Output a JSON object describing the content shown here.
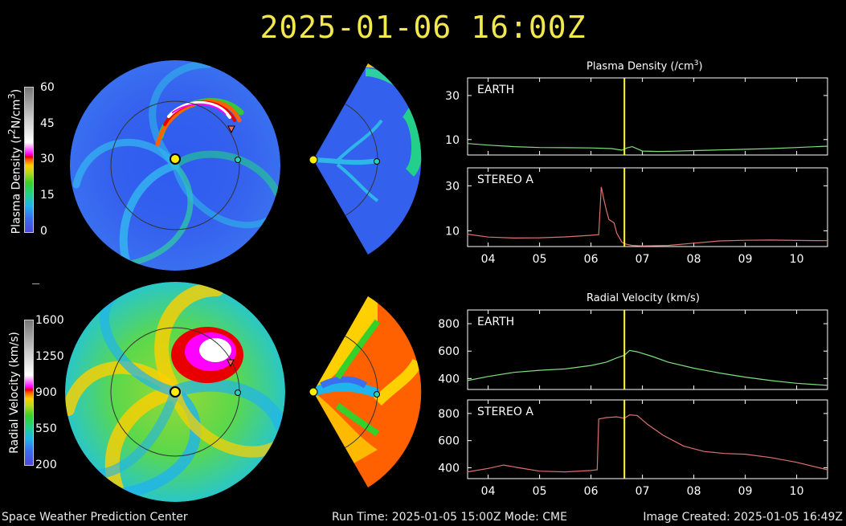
{
  "title": "2025-01-06 16:00Z",
  "footer": {
    "left": "Space Weather Prediction Center",
    "middle": "Run Time: 2025-01-05 15:00Z  Mode: CME",
    "right": "Image Created: 2025-01-05 16:49Z"
  },
  "colorbars": {
    "density": {
      "label_pre": "Plasma Density (r",
      "label_sup1": "2",
      "label_mid": "N/cm",
      "label_sup2": "3",
      "label_post": ")",
      "ticks": [
        "60",
        "45",
        "30",
        "15",
        "0"
      ]
    },
    "velocity": {
      "label": "Radial Velocity (km/s)",
      "ticks": [
        "1600",
        "1250",
        "900",
        "550",
        "200"
      ]
    }
  },
  "colors": {
    "earth_line": "#7ee07e",
    "stereo_line": "#e07070",
    "current_time_marker": "#ffff33",
    "title": "#f2e84b"
  },
  "chart_data": [
    {
      "type": "line",
      "panel_title_pre": "Plasma Density (/cm",
      "panel_title_sup": "3",
      "panel_title_post": ")",
      "label": "EARTH",
      "x_ticks": [],
      "y_ticks": [
        10,
        30
      ],
      "xlim": [
        3.6,
        10.6
      ],
      "ylim": [
        3,
        38
      ],
      "marker_x": 6.65,
      "x": [
        3.6,
        4.0,
        4.5,
        5.0,
        5.5,
        6.0,
        6.4,
        6.6,
        6.7,
        6.8,
        6.9,
        7.0,
        7.3,
        7.6,
        8.0,
        8.5,
        9.0,
        9.5,
        10.0,
        10.6
      ],
      "y": [
        8.2,
        7.5,
        6.8,
        6.4,
        6.3,
        6.2,
        5.9,
        5.2,
        6.2,
        6.8,
        5.8,
        4.8,
        4.6,
        4.7,
        5.0,
        5.3,
        5.6,
        5.9,
        6.4,
        7.0
      ]
    },
    {
      "type": "line",
      "label": "STEREO A",
      "x_ticks": [
        "04",
        "05",
        "06",
        "07",
        "08",
        "09",
        "10"
      ],
      "x_tick_values": [
        4,
        5,
        6,
        7,
        8,
        9,
        10
      ],
      "y_ticks": [
        10,
        30
      ],
      "xlim": [
        3.6,
        10.6
      ],
      "ylim": [
        3,
        38
      ],
      "marker_x": 6.65,
      "x": [
        3.6,
        4.0,
        4.5,
        5.0,
        5.5,
        6.0,
        6.15,
        6.2,
        6.25,
        6.3,
        6.35,
        6.45,
        6.5,
        6.6,
        6.65,
        6.8,
        7.0,
        7.5,
        8.0,
        8.5,
        9.0,
        9.5,
        10.0,
        10.6
      ],
      "y": [
        8.5,
        7.2,
        6.8,
        6.9,
        7.3,
        8.0,
        8.3,
        29.5,
        24.0,
        19.0,
        15.0,
        13.5,
        9.0,
        5.0,
        4.2,
        3.5,
        3.3,
        3.5,
        4.5,
        5.5,
        5.8,
        5.9,
        5.7,
        5.6
      ]
    },
    {
      "type": "line",
      "panel_title": "Radial Velocity (km/s)",
      "label": "EARTH",
      "x_ticks": [],
      "y_ticks": [
        400,
        600,
        800
      ],
      "xlim": [
        3.6,
        10.6
      ],
      "ylim": [
        320,
        900
      ],
      "marker_x": 6.65,
      "x": [
        3.6,
        4.0,
        4.5,
        5.0,
        5.5,
        6.0,
        6.3,
        6.5,
        6.65,
        6.75,
        6.9,
        7.2,
        7.5,
        8.0,
        8.5,
        9.0,
        9.5,
        10.0,
        10.6
      ],
      "y": [
        385,
        415,
        445,
        460,
        470,
        495,
        520,
        550,
        570,
        605,
        595,
        560,
        520,
        475,
        440,
        410,
        385,
        365,
        350
      ]
    },
    {
      "type": "line",
      "label": "STEREO A",
      "x_ticks": [
        "04",
        "05",
        "06",
        "07",
        "08",
        "09",
        "10"
      ],
      "x_tick_values": [
        4,
        5,
        6,
        7,
        8,
        9,
        10
      ],
      "y_ticks": [
        400,
        600,
        800
      ],
      "xlim": [
        3.6,
        10.6
      ],
      "ylim": [
        320,
        900
      ],
      "marker_x": 6.65,
      "x": [
        3.6,
        4.0,
        4.3,
        4.6,
        5.0,
        5.5,
        6.0,
        6.12,
        6.15,
        6.3,
        6.5,
        6.65,
        6.75,
        6.9,
        7.1,
        7.4,
        7.8,
        8.2,
        8.6,
        9.0,
        9.5,
        10.0,
        10.6
      ],
      "y": [
        370,
        395,
        420,
        400,
        375,
        370,
        380,
        385,
        760,
        770,
        775,
        765,
        790,
        785,
        720,
        640,
        560,
        520,
        505,
        500,
        475,
        440,
        385
      ]
    }
  ]
}
